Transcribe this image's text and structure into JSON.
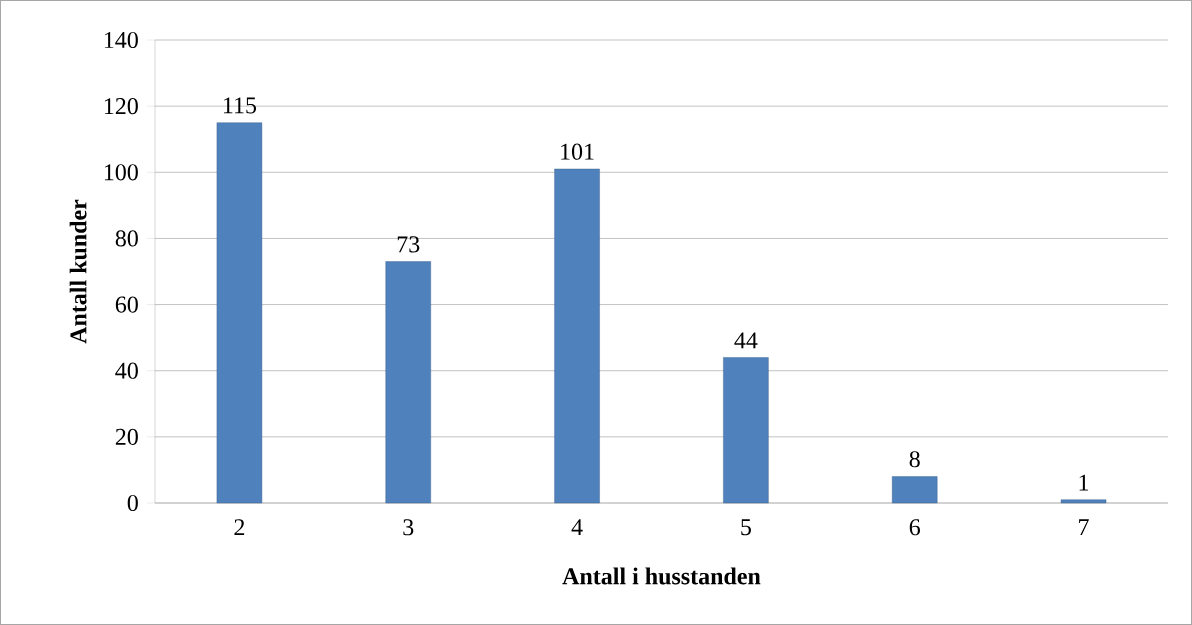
{
  "chart_data": {
    "type": "bar",
    "xlabel": "Antall i husstanden",
    "ylabel": "Antall kunder",
    "categories": [
      "2",
      "3",
      "4",
      "5",
      "6",
      "7"
    ],
    "values": [
      115,
      73,
      101,
      44,
      8,
      1
    ],
    "color": "#4f81bd",
    "ylim": [
      0,
      140
    ],
    "yticks": [
      0,
      20,
      40,
      60,
      80,
      100,
      120,
      140
    ],
    "grid": "y",
    "data_labels": true
  }
}
